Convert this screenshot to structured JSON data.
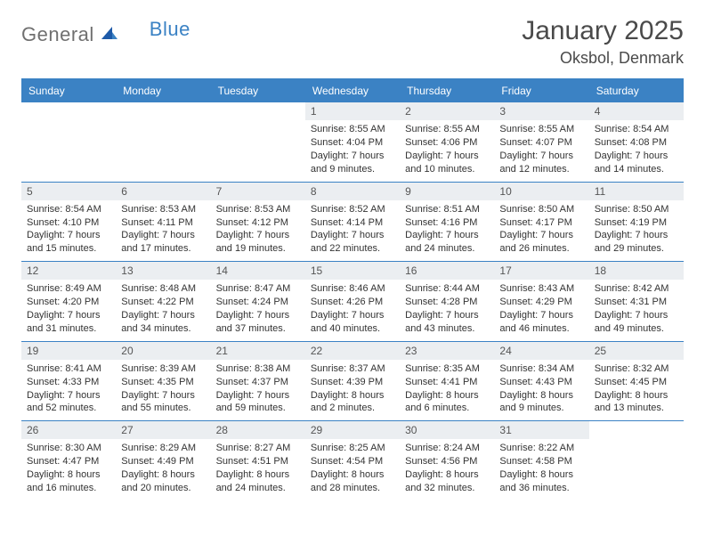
{
  "brand": {
    "part1": "General",
    "part2": "Blue"
  },
  "title": "January 2025",
  "location": "Oksbol, Denmark",
  "colors": {
    "accent": "#3b82c4",
    "daynum_bg": "#ebeef1",
    "text": "#333333",
    "header_text": "#4a4a4a",
    "logo_gray": "#707070",
    "background": "#ffffff"
  },
  "weekdays": [
    "Sunday",
    "Monday",
    "Tuesday",
    "Wednesday",
    "Thursday",
    "Friday",
    "Saturday"
  ],
  "weeks": [
    [
      {
        "n": "",
        "sunrise": "",
        "sunset": "",
        "daylight1": "",
        "daylight2": ""
      },
      {
        "n": "",
        "sunrise": "",
        "sunset": "",
        "daylight1": "",
        "daylight2": ""
      },
      {
        "n": "",
        "sunrise": "",
        "sunset": "",
        "daylight1": "",
        "daylight2": ""
      },
      {
        "n": "1",
        "sunrise": "Sunrise: 8:55 AM",
        "sunset": "Sunset: 4:04 PM",
        "daylight1": "Daylight: 7 hours",
        "daylight2": "and 9 minutes."
      },
      {
        "n": "2",
        "sunrise": "Sunrise: 8:55 AM",
        "sunset": "Sunset: 4:06 PM",
        "daylight1": "Daylight: 7 hours",
        "daylight2": "and 10 minutes."
      },
      {
        "n": "3",
        "sunrise": "Sunrise: 8:55 AM",
        "sunset": "Sunset: 4:07 PM",
        "daylight1": "Daylight: 7 hours",
        "daylight2": "and 12 minutes."
      },
      {
        "n": "4",
        "sunrise": "Sunrise: 8:54 AM",
        "sunset": "Sunset: 4:08 PM",
        "daylight1": "Daylight: 7 hours",
        "daylight2": "and 14 minutes."
      }
    ],
    [
      {
        "n": "5",
        "sunrise": "Sunrise: 8:54 AM",
        "sunset": "Sunset: 4:10 PM",
        "daylight1": "Daylight: 7 hours",
        "daylight2": "and 15 minutes."
      },
      {
        "n": "6",
        "sunrise": "Sunrise: 8:53 AM",
        "sunset": "Sunset: 4:11 PM",
        "daylight1": "Daylight: 7 hours",
        "daylight2": "and 17 minutes."
      },
      {
        "n": "7",
        "sunrise": "Sunrise: 8:53 AM",
        "sunset": "Sunset: 4:12 PM",
        "daylight1": "Daylight: 7 hours",
        "daylight2": "and 19 minutes."
      },
      {
        "n": "8",
        "sunrise": "Sunrise: 8:52 AM",
        "sunset": "Sunset: 4:14 PM",
        "daylight1": "Daylight: 7 hours",
        "daylight2": "and 22 minutes."
      },
      {
        "n": "9",
        "sunrise": "Sunrise: 8:51 AM",
        "sunset": "Sunset: 4:16 PM",
        "daylight1": "Daylight: 7 hours",
        "daylight2": "and 24 minutes."
      },
      {
        "n": "10",
        "sunrise": "Sunrise: 8:50 AM",
        "sunset": "Sunset: 4:17 PM",
        "daylight1": "Daylight: 7 hours",
        "daylight2": "and 26 minutes."
      },
      {
        "n": "11",
        "sunrise": "Sunrise: 8:50 AM",
        "sunset": "Sunset: 4:19 PM",
        "daylight1": "Daylight: 7 hours",
        "daylight2": "and 29 minutes."
      }
    ],
    [
      {
        "n": "12",
        "sunrise": "Sunrise: 8:49 AM",
        "sunset": "Sunset: 4:20 PM",
        "daylight1": "Daylight: 7 hours",
        "daylight2": "and 31 minutes."
      },
      {
        "n": "13",
        "sunrise": "Sunrise: 8:48 AM",
        "sunset": "Sunset: 4:22 PM",
        "daylight1": "Daylight: 7 hours",
        "daylight2": "and 34 minutes."
      },
      {
        "n": "14",
        "sunrise": "Sunrise: 8:47 AM",
        "sunset": "Sunset: 4:24 PM",
        "daylight1": "Daylight: 7 hours",
        "daylight2": "and 37 minutes."
      },
      {
        "n": "15",
        "sunrise": "Sunrise: 8:46 AM",
        "sunset": "Sunset: 4:26 PM",
        "daylight1": "Daylight: 7 hours",
        "daylight2": "and 40 minutes."
      },
      {
        "n": "16",
        "sunrise": "Sunrise: 8:44 AM",
        "sunset": "Sunset: 4:28 PM",
        "daylight1": "Daylight: 7 hours",
        "daylight2": "and 43 minutes."
      },
      {
        "n": "17",
        "sunrise": "Sunrise: 8:43 AM",
        "sunset": "Sunset: 4:29 PM",
        "daylight1": "Daylight: 7 hours",
        "daylight2": "and 46 minutes."
      },
      {
        "n": "18",
        "sunrise": "Sunrise: 8:42 AM",
        "sunset": "Sunset: 4:31 PM",
        "daylight1": "Daylight: 7 hours",
        "daylight2": "and 49 minutes."
      }
    ],
    [
      {
        "n": "19",
        "sunrise": "Sunrise: 8:41 AM",
        "sunset": "Sunset: 4:33 PM",
        "daylight1": "Daylight: 7 hours",
        "daylight2": "and 52 minutes."
      },
      {
        "n": "20",
        "sunrise": "Sunrise: 8:39 AM",
        "sunset": "Sunset: 4:35 PM",
        "daylight1": "Daylight: 7 hours",
        "daylight2": "and 55 minutes."
      },
      {
        "n": "21",
        "sunrise": "Sunrise: 8:38 AM",
        "sunset": "Sunset: 4:37 PM",
        "daylight1": "Daylight: 7 hours",
        "daylight2": "and 59 minutes."
      },
      {
        "n": "22",
        "sunrise": "Sunrise: 8:37 AM",
        "sunset": "Sunset: 4:39 PM",
        "daylight1": "Daylight: 8 hours",
        "daylight2": "and 2 minutes."
      },
      {
        "n": "23",
        "sunrise": "Sunrise: 8:35 AM",
        "sunset": "Sunset: 4:41 PM",
        "daylight1": "Daylight: 8 hours",
        "daylight2": "and 6 minutes."
      },
      {
        "n": "24",
        "sunrise": "Sunrise: 8:34 AM",
        "sunset": "Sunset: 4:43 PM",
        "daylight1": "Daylight: 8 hours",
        "daylight2": "and 9 minutes."
      },
      {
        "n": "25",
        "sunrise": "Sunrise: 8:32 AM",
        "sunset": "Sunset: 4:45 PM",
        "daylight1": "Daylight: 8 hours",
        "daylight2": "and 13 minutes."
      }
    ],
    [
      {
        "n": "26",
        "sunrise": "Sunrise: 8:30 AM",
        "sunset": "Sunset: 4:47 PM",
        "daylight1": "Daylight: 8 hours",
        "daylight2": "and 16 minutes."
      },
      {
        "n": "27",
        "sunrise": "Sunrise: 8:29 AM",
        "sunset": "Sunset: 4:49 PM",
        "daylight1": "Daylight: 8 hours",
        "daylight2": "and 20 minutes."
      },
      {
        "n": "28",
        "sunrise": "Sunrise: 8:27 AM",
        "sunset": "Sunset: 4:51 PM",
        "daylight1": "Daylight: 8 hours",
        "daylight2": "and 24 minutes."
      },
      {
        "n": "29",
        "sunrise": "Sunrise: 8:25 AM",
        "sunset": "Sunset: 4:54 PM",
        "daylight1": "Daylight: 8 hours",
        "daylight2": "and 28 minutes."
      },
      {
        "n": "30",
        "sunrise": "Sunrise: 8:24 AM",
        "sunset": "Sunset: 4:56 PM",
        "daylight1": "Daylight: 8 hours",
        "daylight2": "and 32 minutes."
      },
      {
        "n": "31",
        "sunrise": "Sunrise: 8:22 AM",
        "sunset": "Sunset: 4:58 PM",
        "daylight1": "Daylight: 8 hours",
        "daylight2": "and 36 minutes."
      },
      {
        "n": "",
        "sunrise": "",
        "sunset": "",
        "daylight1": "",
        "daylight2": ""
      }
    ]
  ]
}
